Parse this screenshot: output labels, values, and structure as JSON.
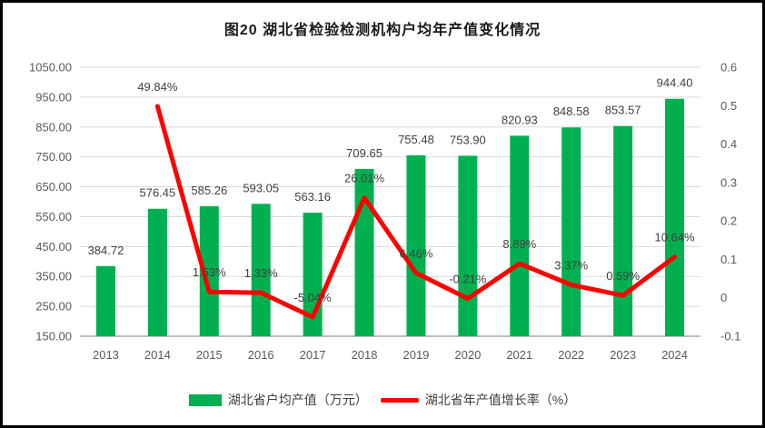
{
  "title": "图20  湖北省检验检测机构户均年产值变化情况",
  "chart_data": {
    "type": "combo",
    "categories": [
      "2013",
      "2014",
      "2015",
      "2016",
      "2017",
      "2018",
      "2019",
      "2020",
      "2021",
      "2022",
      "2023",
      "2024"
    ],
    "series": [
      {
        "name": "湖北省户均产值（万元）",
        "type": "bar",
        "axis": "left",
        "color": "#00B050",
        "values": [
          384.72,
          576.45,
          585.26,
          593.05,
          563.16,
          709.65,
          755.48,
          753.9,
          820.93,
          848.58,
          853.57,
          944.4
        ],
        "labels": [
          "384.72",
          "576.45",
          "585.26",
          "593.05",
          "563.16",
          "709.65",
          "755.48",
          "753.90",
          "820.93",
          "848.58",
          "853.57",
          "944.40"
        ]
      },
      {
        "name": "湖北省年产值增长率（%）",
        "type": "line",
        "axis": "right",
        "color": "#FF0000",
        "values": [
          null,
          0.4984,
          0.0153,
          0.0133,
          -0.0504,
          0.2601,
          0.0646,
          -0.0021,
          0.0889,
          0.0337,
          0.0059,
          0.1064
        ],
        "labels": [
          "",
          "49.84%",
          "1.53%",
          "1.33%",
          "-5.04%",
          "26.01%",
          "6.46%",
          "-0.21%",
          "8.89%",
          "3.37%",
          "0.59%",
          "10.64%"
        ]
      }
    ],
    "left_axis": {
      "min": 150,
      "max": 1050,
      "ticks": [
        "1050.00",
        "950.00",
        "850.00",
        "750.00",
        "650.00",
        "550.00",
        "450.00",
        "350.00",
        "250.00",
        "150.00"
      ]
    },
    "right_axis": {
      "min": -0.1,
      "max": 0.6,
      "ticks": [
        "0.6",
        "0.5",
        "0.4",
        "0.3",
        "0.2",
        "0.1",
        "0",
        "-0.1"
      ]
    },
    "grid": true,
    "legend_position": "bottom"
  },
  "styles": {
    "bar_color": "#00B050",
    "line_color": "#FF0000",
    "grid_color": "#D9D9D9",
    "axis_line_color": "#BFBFBF",
    "tick_label_color": "#595959",
    "data_label_color": "#404040",
    "border_color": "#000000",
    "background": "#FFFFFF"
  }
}
